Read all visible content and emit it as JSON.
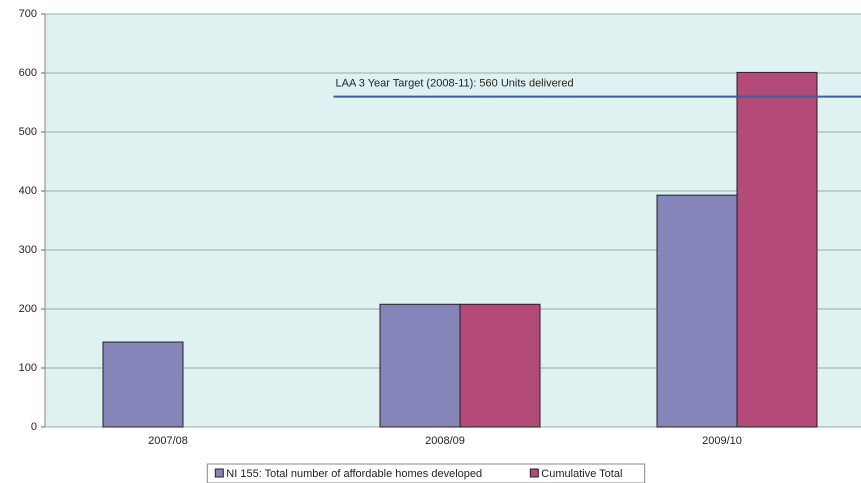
{
  "chart_data": {
    "type": "bar",
    "categories": [
      "2007/08",
      "2008/09",
      "2009/10"
    ],
    "series": [
      {
        "name": "NI 155: Total number of affordable homes developed",
        "color": "#8585b9",
        "values": [
          144,
          208,
          393
        ]
      },
      {
        "name": "Cumulative Total",
        "color": "#b44a78",
        "values": [
          null,
          208,
          601
        ]
      }
    ],
    "ylim": [
      0,
      700
    ],
    "yticks": [
      0,
      100,
      200,
      300,
      400,
      500,
      600,
      700
    ],
    "grid": true,
    "target": {
      "value": 560,
      "label": "LAA 3 Year Target (2008-11): 560 Units delivered",
      "color": "#3b5ea8"
    },
    "legend": "bottom"
  }
}
